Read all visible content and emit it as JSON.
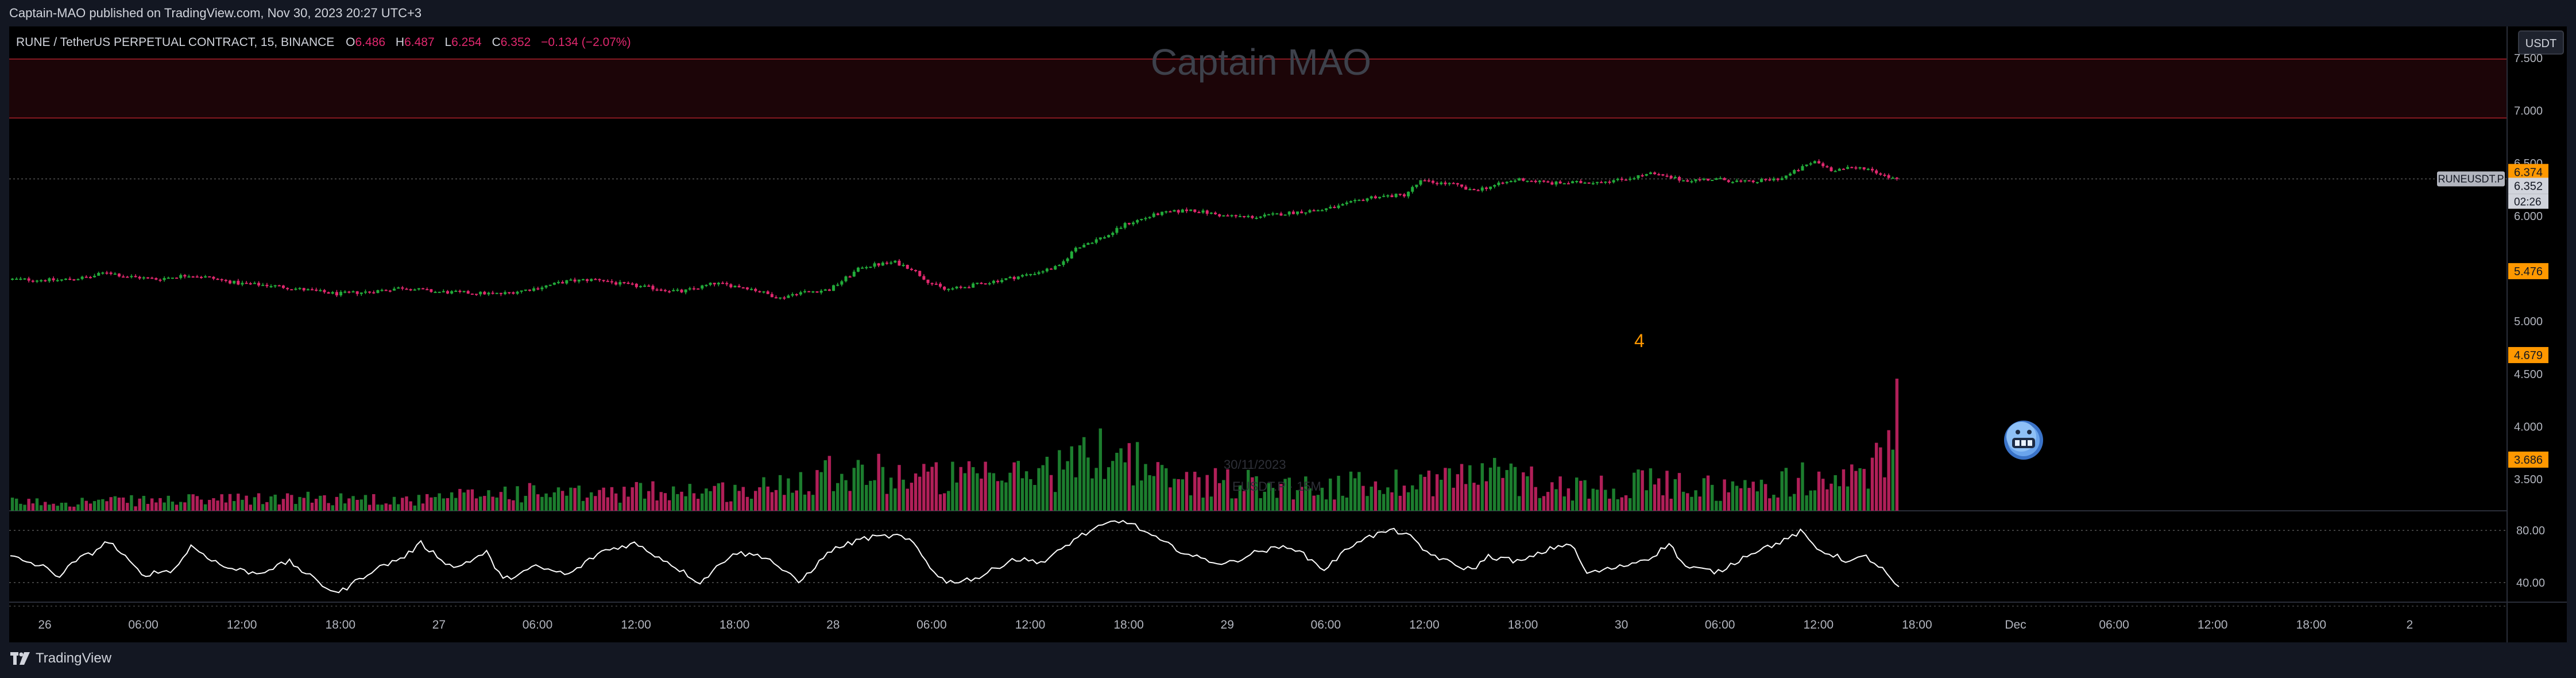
{
  "publisher_line": "Captain-MAO published on TradingView.com, Nov 30, 2023 20:27 UTC+3",
  "symbol_info": {
    "name": "RUNE / TetherUS PERPETUAL CONTRACT, 15, BINANCE",
    "open_label": "O",
    "open": "6.486",
    "high_label": "H",
    "high": "6.487",
    "low_label": "L",
    "low": "6.254",
    "close_label": "C",
    "close": "6.352",
    "change": "−0.134 (−2.07%)"
  },
  "watermark": "Captain MAO",
  "currency_button": "USDT",
  "symbol_tag": "RUNEUSDT.P",
  "countdown": "02:26",
  "annotation_number": "4",
  "faded_label_date": "30/11/2023",
  "faded_label_symbol": "EUSDT.P · 15M",
  "footer_brand": "TradingView",
  "colors": {
    "up": "#22ab3a",
    "down": "#e0286e",
    "zone_fill": "#1c0508",
    "zone_border": "#8a1a22",
    "price_tag": "#ff9800",
    "rsi_line": "#ffffff",
    "background": "#000000",
    "frame": "#131722"
  },
  "chart_data": [
    {
      "type": "candlestick",
      "title": "",
      "y_axis": {
        "ylim": [
          3.2,
          7.8
        ],
        "ticks": [
          "3.500",
          "4.000",
          "4.500",
          "5.000",
          "5.500",
          "6.000",
          "6.500",
          "7.000",
          "7.500"
        ],
        "price_tags": [
          {
            "value": 6.374,
            "label": "6.374",
            "kind": "orange"
          },
          {
            "value": 6.352,
            "label": "6.352",
            "kind": "last"
          },
          {
            "value": 5.476,
            "label": "5.476",
            "kind": "orange"
          },
          {
            "value": 4.679,
            "label": "4.679",
            "kind": "orange"
          },
          {
            "value": 3.686,
            "label": "3.686",
            "kind": "orange"
          }
        ]
      },
      "x_axis": {
        "ticks": [
          "26",
          "06:00",
          "12:00",
          "18:00",
          "27",
          "06:00",
          "12:00",
          "18:00",
          "28",
          "06:00",
          "12:00",
          "18:00",
          "29",
          "06:00",
          "12:00",
          "18:00",
          "30",
          "06:00",
          "12:00",
          "18:00",
          "Dec",
          "06:00",
          "12:00",
          "18:00",
          "2"
        ]
      },
      "resistance_zone": {
        "low": 6.93,
        "high": 7.49
      },
      "price_path": [
        [
          0,
          5.4
        ],
        [
          3,
          5.39
        ],
        [
          5,
          5.42
        ],
        [
          6,
          5.47
        ],
        [
          7,
          5.43
        ],
        [
          9,
          5.4
        ],
        [
          11,
          5.44
        ],
        [
          12,
          5.42
        ],
        [
          14,
          5.36
        ],
        [
          16,
          5.34
        ],
        [
          18,
          5.3
        ],
        [
          20,
          5.26
        ],
        [
          22,
          5.28
        ],
        [
          24,
          5.32
        ],
        [
          26,
          5.28
        ],
        [
          28,
          5.27
        ],
        [
          30,
          5.26
        ],
        [
          32,
          5.31
        ],
        [
          34,
          5.38
        ],
        [
          36,
          5.4
        ],
        [
          37,
          5.36
        ],
        [
          39,
          5.32
        ],
        [
          41,
          5.28
        ],
        [
          43,
          5.36
        ],
        [
          45,
          5.32
        ],
        [
          47,
          5.22
        ],
        [
          48,
          5.27
        ],
        [
          50,
          5.3
        ],
        [
          52,
          5.52
        ],
        [
          54,
          5.56
        ],
        [
          55,
          5.5
        ],
        [
          56,
          5.38
        ],
        [
          57,
          5.3
        ],
        [
          58,
          5.32
        ],
        [
          60,
          5.38
        ],
        [
          62,
          5.44
        ],
        [
          64,
          5.52
        ],
        [
          65,
          5.7
        ],
        [
          67,
          5.82
        ],
        [
          68,
          5.92
        ],
        [
          70,
          6.02
        ],
        [
          72,
          6.06
        ],
        [
          74,
          6.0
        ],
        [
          76,
          5.99
        ],
        [
          78,
          6.03
        ],
        [
          80,
          6.06
        ],
        [
          81,
          6.09
        ],
        [
          83,
          6.18
        ],
        [
          85,
          6.2
        ],
        [
          86,
          6.33
        ],
        [
          88,
          6.3
        ],
        [
          89,
          6.24
        ],
        [
          90,
          6.27
        ],
        [
          92,
          6.35
        ],
        [
          94,
          6.31
        ],
        [
          96,
          6.32
        ],
        [
          98,
          6.34
        ],
        [
          100,
          6.4
        ],
        [
          102,
          6.34
        ],
        [
          104,
          6.35
        ],
        [
          106,
          6.32
        ],
        [
          108,
          6.36
        ],
        [
          110,
          6.52
        ],
        [
          111,
          6.44
        ],
        [
          112,
          6.45
        ],
        [
          113,
          6.46
        ],
        [
          114,
          6.4
        ],
        [
          115,
          6.35
        ]
      ],
      "volume_path": [
        [
          0,
          0.08
        ],
        [
          10,
          0.1
        ],
        [
          20,
          0.12
        ],
        [
          25,
          0.1
        ],
        [
          30,
          0.18
        ],
        [
          35,
          0.15
        ],
        [
          40,
          0.2
        ],
        [
          45,
          0.18
        ],
        [
          50,
          0.4
        ],
        [
          55,
          0.32
        ],
        [
          60,
          0.3
        ],
        [
          65,
          0.45
        ],
        [
          67,
          0.62
        ],
        [
          70,
          0.3
        ],
        [
          75,
          0.26
        ],
        [
          80,
          0.22
        ],
        [
          85,
          0.28
        ],
        [
          90,
          0.35
        ],
        [
          95,
          0.22
        ],
        [
          100,
          0.26
        ],
        [
          105,
          0.2
        ],
        [
          110,
          0.32
        ],
        [
          113,
          0.28
        ],
        [
          115,
          1.0
        ]
      ],
      "rsi": {
        "levels": [
          80,
          40
        ],
        "ylim": [
          25,
          95
        ],
        "path": [
          [
            0,
            60
          ],
          [
            2,
            52
          ],
          [
            3,
            45
          ],
          [
            4,
            57
          ],
          [
            5,
            63
          ],
          [
            6,
            72
          ],
          [
            8,
            46
          ],
          [
            10,
            50
          ],
          [
            11,
            68
          ],
          [
            13,
            52
          ],
          [
            15,
            47
          ],
          [
            17,
            56
          ],
          [
            19,
            38
          ],
          [
            20,
            32
          ],
          [
            22,
            49
          ],
          [
            24,
            60
          ],
          [
            25,
            70
          ],
          [
            27,
            51
          ],
          [
            29,
            63
          ],
          [
            30,
            42
          ],
          [
            32,
            52
          ],
          [
            34,
            46
          ],
          [
            36,
            64
          ],
          [
            38,
            70
          ],
          [
            40,
            56
          ],
          [
            42,
            40
          ],
          [
            44,
            63
          ],
          [
            46,
            60
          ],
          [
            48,
            40
          ],
          [
            50,
            65
          ],
          [
            52,
            74
          ],
          [
            54,
            76
          ],
          [
            55,
            70
          ],
          [
            56,
            52
          ],
          [
            57,
            40
          ],
          [
            59,
            44
          ],
          [
            61,
            58
          ],
          [
            63,
            56
          ],
          [
            65,
            75
          ],
          [
            67,
            86
          ],
          [
            68,
            87
          ],
          [
            70,
            72
          ],
          [
            72,
            60
          ],
          [
            74,
            54
          ],
          [
            76,
            64
          ],
          [
            78,
            68
          ],
          [
            80,
            50
          ],
          [
            82,
            72
          ],
          [
            84,
            80
          ],
          [
            85,
            78
          ],
          [
            86,
            65
          ],
          [
            88,
            53
          ],
          [
            89,
            50
          ],
          [
            90,
            60
          ],
          [
            92,
            56
          ],
          [
            94,
            67
          ],
          [
            95,
            70
          ],
          [
            96,
            47
          ],
          [
            98,
            52
          ],
          [
            100,
            60
          ],
          [
            101,
            70
          ],
          [
            102,
            52
          ],
          [
            104,
            48
          ],
          [
            106,
            63
          ],
          [
            108,
            72
          ],
          [
            109,
            79
          ],
          [
            110,
            66
          ],
          [
            112,
            56
          ],
          [
            113,
            60
          ],
          [
            114,
            50
          ],
          [
            115,
            35
          ]
        ]
      }
    }
  ]
}
